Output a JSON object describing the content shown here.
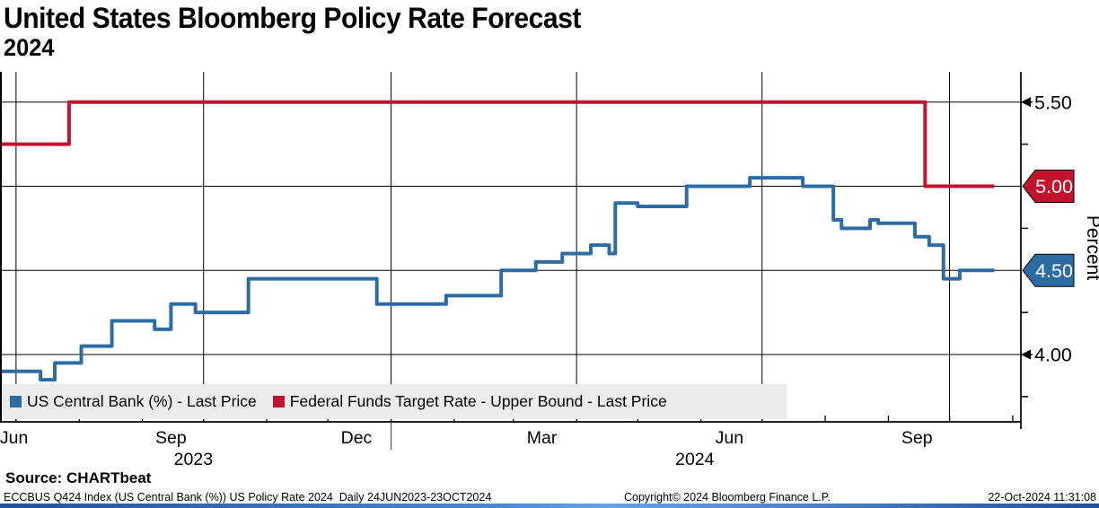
{
  "header": {
    "title": "United States Bloomberg Policy Rate Forecast",
    "subtitle": "2024"
  },
  "legend": {
    "items": [
      {
        "label": "US Central Bank (%) - Last Price",
        "color": "#2d6ca3"
      },
      {
        "label": "Federal Funds Target Rate - Upper Bound - Last Price",
        "color": "#c0142f"
      }
    ]
  },
  "footer": {
    "source": "Source: CHARTbeat",
    "description": "ECCBUS Q424 Index (US Central Bank (%)) US Policy Rate 2024  Daily 24JUN2023-23OCT2024",
    "copyright": "Copyright© 2024 Bloomberg Finance L.P.",
    "timestamp": "22-Oct-2024 11:31:08"
  },
  "chart_data": {
    "type": "line",
    "title": "United States Bloomberg Policy Rate Forecast 2024",
    "xlabel": "",
    "ylabel": "Percent",
    "legend_position": "bottom-left inside plot",
    "grid": true,
    "x_domain": [
      "2023-06-24",
      "2024-11-05"
    ],
    "ylim": [
      3.6,
      5.68
    ],
    "y_major_ticks": [
      {
        "value": 5.5,
        "label": "5.50",
        "style": "arrow"
      },
      {
        "value": 5.0,
        "label": "5.00",
        "style": "badge",
        "color": "#c0142f"
      },
      {
        "value": 4.5,
        "label": "4.50",
        "style": "badge",
        "color": "#2d6ca3"
      },
      {
        "value": 4.0,
        "label": "4.00",
        "style": "arrow"
      }
    ],
    "y_minor_ticks": [
      5.25,
      4.75,
      4.25,
      3.75
    ],
    "x_gridlines": [
      "2023-07-01",
      "2023-10-01",
      "2024-01-01",
      "2024-04-01",
      "2024-07-01",
      "2024-10-01"
    ],
    "x_month_ticks": [
      "2023-07-01",
      "2023-08-01",
      "2023-09-01",
      "2023-10-01",
      "2023-11-01",
      "2023-12-01",
      "2024-01-01",
      "2024-02-01",
      "2024-03-01",
      "2024-04-01",
      "2024-05-01",
      "2024-06-01",
      "2024-07-01",
      "2024-08-01",
      "2024-09-01",
      "2024-10-01",
      "2024-11-01"
    ],
    "x_labels": [
      {
        "text": "Jun",
        "date": "2023-06-30"
      },
      {
        "text": "Sep",
        "date": "2023-09-15"
      },
      {
        "text": "Dec",
        "date": "2023-12-15"
      },
      {
        "text": "Mar",
        "date": "2024-03-15"
      },
      {
        "text": "Jun",
        "date": "2024-06-15"
      },
      {
        "text": "Sep",
        "date": "2024-09-15"
      }
    ],
    "year_labels": [
      {
        "text": "2023",
        "date": "2023-09-26"
      },
      {
        "text": "2024",
        "date": "2024-05-29"
      }
    ],
    "year_divider_date": "2024-01-01",
    "series": [
      {
        "name": "US Central Bank (%) - Last Price",
        "color": "#2d6ca3",
        "step": true,
        "last_label": "4.50",
        "points": [
          [
            "2023-06-24",
            3.9
          ],
          [
            "2023-07-13",
            3.85
          ],
          [
            "2023-07-20",
            3.95
          ],
          [
            "2023-08-02",
            4.05
          ],
          [
            "2023-08-17",
            4.2
          ],
          [
            "2023-09-07",
            4.15
          ],
          [
            "2023-09-15",
            4.3
          ],
          [
            "2023-09-27",
            4.25
          ],
          [
            "2023-10-23",
            4.45
          ],
          [
            "2023-12-25",
            4.3
          ],
          [
            "2024-01-28",
            4.35
          ],
          [
            "2024-02-24",
            4.5
          ],
          [
            "2024-03-12",
            4.55
          ],
          [
            "2024-03-25",
            4.6
          ],
          [
            "2024-04-08",
            4.65
          ],
          [
            "2024-04-17",
            4.6
          ],
          [
            "2024-04-20",
            4.9
          ],
          [
            "2024-05-01",
            4.88
          ],
          [
            "2024-05-25",
            5.0
          ],
          [
            "2024-06-25",
            5.05
          ],
          [
            "2024-07-21",
            5.0
          ],
          [
            "2024-08-05",
            4.8
          ],
          [
            "2024-08-09",
            4.75
          ],
          [
            "2024-08-23",
            4.8
          ],
          [
            "2024-08-27",
            4.78
          ],
          [
            "2024-09-14",
            4.7
          ],
          [
            "2024-09-21",
            4.65
          ],
          [
            "2024-09-28",
            4.45
          ],
          [
            "2024-10-06",
            4.5
          ],
          [
            "2024-10-23",
            4.5
          ]
        ]
      },
      {
        "name": "Federal Funds Target Rate - Upper Bound - Last Price",
        "color": "#c0142f",
        "step": true,
        "last_label": "5.00",
        "points": [
          [
            "2023-06-24",
            5.25
          ],
          [
            "2023-07-27",
            5.5
          ],
          [
            "2024-09-19",
            5.0
          ],
          [
            "2024-10-23",
            5.0
          ]
        ]
      }
    ]
  }
}
